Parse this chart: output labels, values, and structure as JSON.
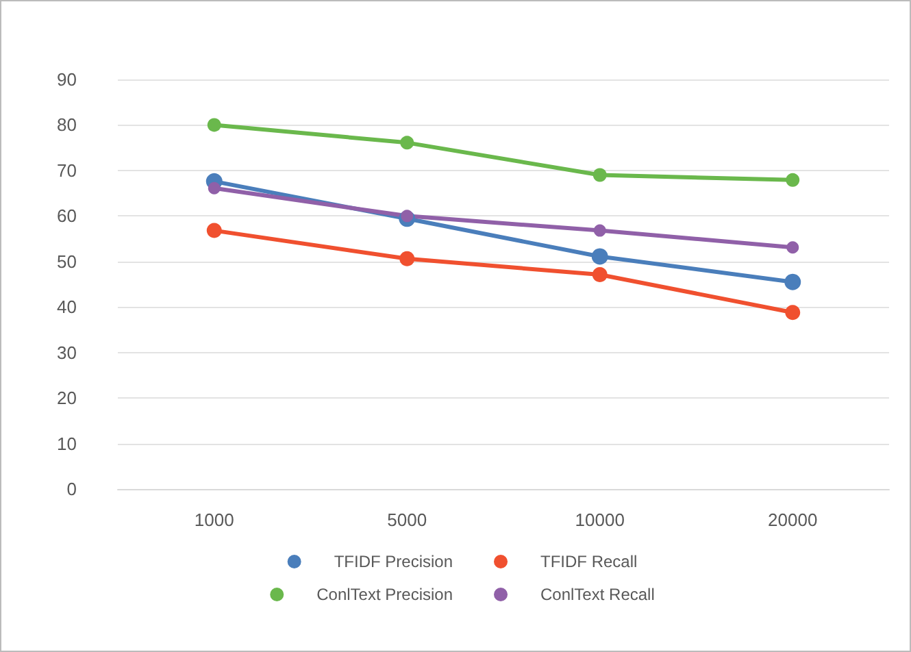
{
  "chart_data": {
    "type": "line",
    "categories": [
      "1000",
      "5000",
      "10000",
      "20000"
    ],
    "series": [
      {
        "name": "TFIDF Precision",
        "color": "#4a7ebb",
        "values": [
          67.6,
          59.4,
          51.1,
          45.5
        ]
      },
      {
        "name": "TFIDF Recall",
        "color": "#f0502f",
        "values": [
          56.8,
          50.6,
          47.1,
          38.8
        ]
      },
      {
        "name": "ConlText Precision",
        "color": "#6ab84c",
        "values": [
          80,
          76.1,
          69,
          67.9
        ]
      },
      {
        "name": "ConlText Recall",
        "color": "#9060a8",
        "values": [
          66.1,
          60,
          56.8,
          53.1
        ]
      }
    ],
    "ylim": [
      0,
      90
    ],
    "yticks": [
      0,
      10,
      20,
      30,
      40,
      50,
      60,
      70,
      80,
      90
    ],
    "grid": "y",
    "legend": "bottom",
    "marker": "circle",
    "line_style": "solid"
  }
}
